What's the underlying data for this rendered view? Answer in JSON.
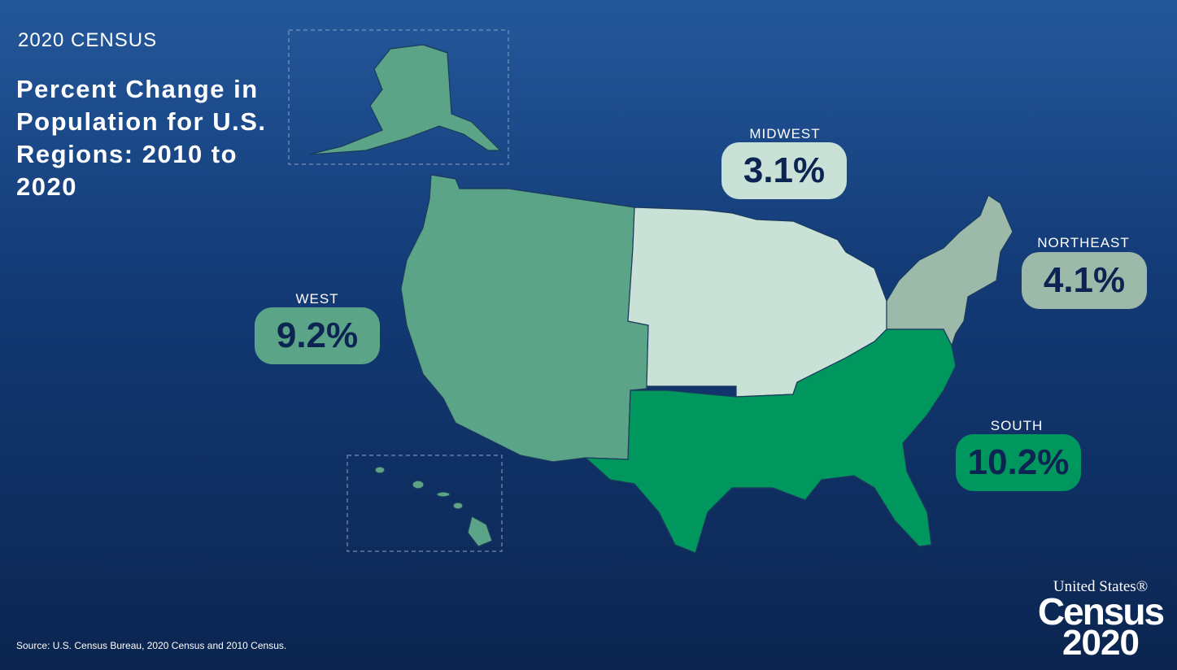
{
  "kicker": "2020 CENSUS",
  "title": "Percent Change in Population for U.S. Regions: 2010 to 2020",
  "regions": [
    {
      "name": "WEST",
      "value": "9.2%",
      "color": "#5ca487"
    },
    {
      "name": "MIDWEST",
      "value": "3.1%",
      "color": "#c9e1d6"
    },
    {
      "name": "NORTHEAST",
      "value": "4.1%",
      "color": "#9db9aa"
    },
    {
      "name": "SOUTH",
      "value": "10.2%",
      "color": "#00975f"
    }
  ],
  "source": "Source: U.S. Census Bureau, 2020 Census and 2010 Census.",
  "logo": {
    "line1": "United States®",
    "line2": "Census",
    "line3": "2020"
  },
  "colors": {
    "background_top": "#24589b",
    "background_bottom": "#0b2550",
    "border": "#1b3a5c"
  }
}
